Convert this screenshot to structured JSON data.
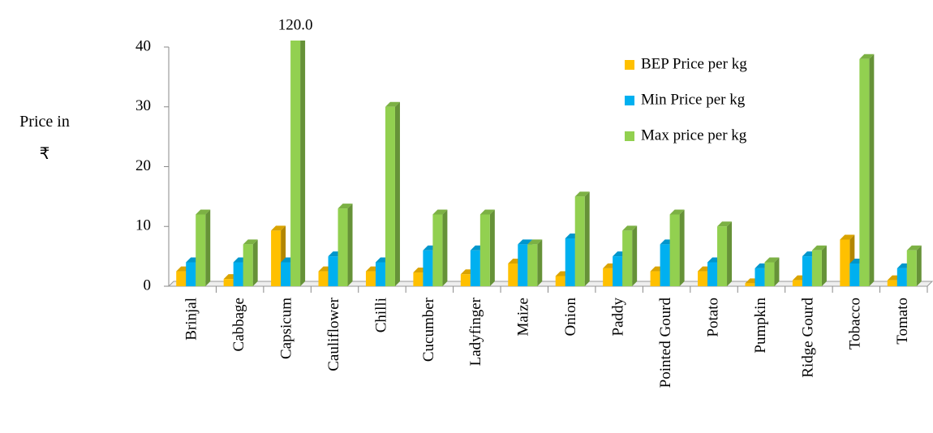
{
  "chart_data": {
    "type": "bar3d",
    "y_label": "Price in ₹",
    "categories": [
      "Brinjal",
      "Cabbage",
      "Capsicum",
      "Cauliflower",
      "Chilli",
      "Cucumber",
      "Ladyfinger",
      "Maize",
      "Onion",
      "Paddy",
      "Pointed Gourd",
      "Potato",
      "Pumpkin",
      "Ridge Gourd",
      "Tobacco",
      "Tomato"
    ],
    "series": [
      {
        "name": "BEP Price per kg",
        "color": "#ffc000",
        "values": [
          2.5,
          1.2,
          9.3,
          2.5,
          2.5,
          2.3,
          2,
          3.8,
          1.7,
          3,
          2.5,
          2.5,
          0.5,
          1,
          7.8,
          1
        ]
      },
      {
        "name": "Min Price per kg",
        "color": "#00b0f0",
        "values": [
          4,
          4,
          4,
          5,
          4,
          6,
          6,
          7,
          8,
          5,
          7,
          4,
          3,
          5,
          3.8,
          3
        ]
      },
      {
        "name": "Max price per kg",
        "color": "#92d050",
        "values": [
          12,
          7,
          120,
          13,
          30,
          12,
          12,
          7,
          15,
          9.3,
          12,
          10,
          4,
          6,
          38,
          6
        ],
        "value_labels": [
          null,
          null,
          "120.0",
          null,
          null,
          null,
          null,
          null,
          null,
          null,
          null,
          null,
          null,
          null,
          null,
          null
        ]
      }
    ],
    "ylim": [
      0,
      40
    ],
    "yticks": [
      0,
      10,
      20,
      30,
      40
    ],
    "legend": "top-right"
  }
}
